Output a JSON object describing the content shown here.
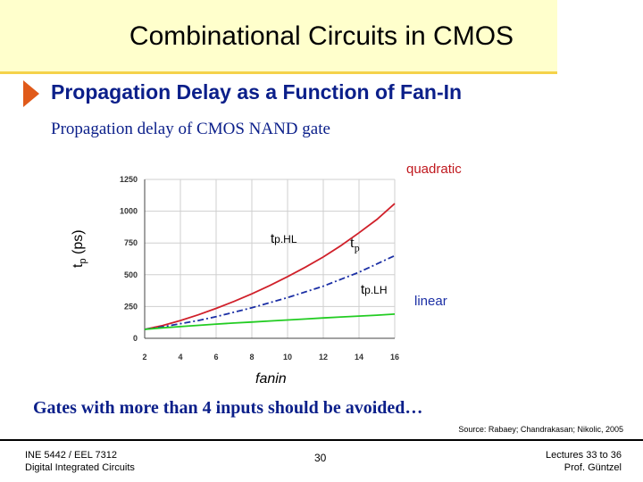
{
  "slide": {
    "title": "Combinational Circuits in CMOS",
    "heading": "Propagation Delay as a Function of Fan-In",
    "subtitle": "Propagation delay of CMOS NAND gate",
    "conclusion": "Gates with more than 4 inputs should be avoided…",
    "source": "Source: Rabaey; Chandrakasan; Nikolic, 2005",
    "footer": {
      "course_line1": "INE 5442 / EEL 7312",
      "course_line2": "Digital Integrated Circuits",
      "page": "30",
      "lectures": "Lectures 33 to 36",
      "author": "Prof. Güntzel"
    },
    "colors": {
      "title_band": "#ffffcc",
      "accent_line": "#f5d24a",
      "heading": "#0b1f8a",
      "bullet": "#e05a1a"
    }
  },
  "chart_data": {
    "type": "line",
    "title": "Propagation delay of CMOS NAND gate",
    "xlabel": "fanin",
    "ylabel_main": "t",
    "ylabel_sub": "p",
    "ylabel_unit": "(ps)",
    "xlim": [
      2,
      16
    ],
    "ylim": [
      0,
      1250
    ],
    "xticks": [
      2,
      4,
      6,
      8,
      10,
      12,
      14,
      16
    ],
    "yticks": [
      0,
      250,
      500,
      750,
      1000,
      1250
    ],
    "grid": true,
    "x": [
      2,
      3,
      4,
      5,
      6,
      7,
      8,
      9,
      10,
      11,
      12,
      13,
      14,
      15,
      16
    ],
    "series": [
      {
        "name": "tpHL",
        "color": "#d0202a",
        "style": "solid",
        "values": [
          70,
          100,
          140,
          185,
          235,
          290,
          350,
          415,
          485,
          560,
          640,
          730,
          830,
          935,
          1060
        ]
      },
      {
        "name": "tp",
        "color": "#1b2fa5",
        "style": "dashdot",
        "values": [
          70,
          90,
          115,
          140,
          170,
          205,
          240,
          280,
          320,
          365,
          410,
          465,
          520,
          585,
          650
        ]
      },
      {
        "name": "tpLH",
        "color": "#22cc22",
        "style": "solid",
        "values": [
          70,
          82,
          92,
          102,
          112,
          120,
          128,
          136,
          144,
          152,
          160,
          168,
          175,
          182,
          190
        ]
      }
    ],
    "annotations": {
      "quadratic": "quadratic",
      "linear": "linear",
      "tphl_main": "t",
      "tphl_sub": "p.HL",
      "tp_main": "t",
      "tp_sub": "p",
      "tplh_main": "t",
      "tplh_sub": "p.LH"
    }
  }
}
